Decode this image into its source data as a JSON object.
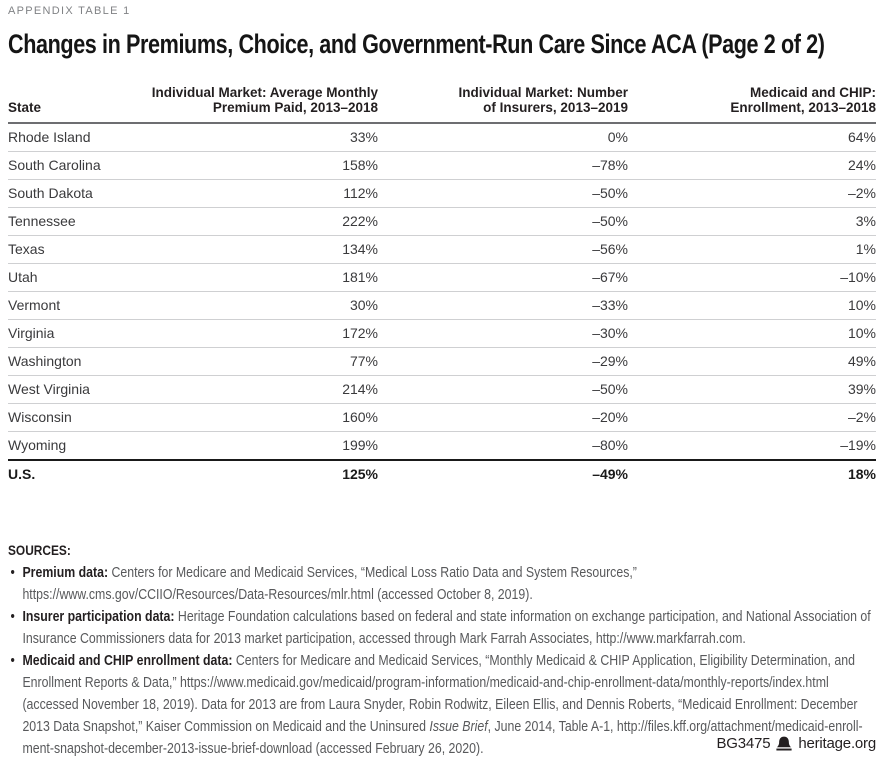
{
  "eyebrow": "APPENDIX TABLE 1",
  "title": "Changes in Premiums, Choice, and Government-Run Care Since ACA (Page 2 of 2)",
  "table": {
    "columns": [
      {
        "label": "State"
      },
      {
        "label": "Individual Market: Average Monthly\nPremium Paid, 2013–2018"
      },
      {
        "label": "Individual Market: Number\nof Insurers, 2013–2019"
      },
      {
        "label": "Medicaid and CHIP:\nEnrollment, 2013–2018"
      }
    ],
    "rows": [
      {
        "state": "Rhode Island",
        "premium": "33%",
        "insurers": "0%",
        "medicaid": "64%"
      },
      {
        "state": "South Carolina",
        "premium": "158%",
        "insurers": "–78%",
        "medicaid": "24%"
      },
      {
        "state": "South Dakota",
        "premium": "112%",
        "insurers": "–50%",
        "medicaid": "–2%"
      },
      {
        "state": "Tennessee",
        "premium": "222%",
        "insurers": "–50%",
        "medicaid": "3%"
      },
      {
        "state": "Texas",
        "premium": "134%",
        "insurers": "–56%",
        "medicaid": "1%"
      },
      {
        "state": "Utah",
        "premium": "181%",
        "insurers": "–67%",
        "medicaid": "–10%"
      },
      {
        "state": "Vermont",
        "premium": "30%",
        "insurers": "–33%",
        "medicaid": "10%"
      },
      {
        "state": "Virginia",
        "premium": "172%",
        "insurers": "–30%",
        "medicaid": "10%"
      },
      {
        "state": "Washington",
        "premium": "77%",
        "insurers": "–29%",
        "medicaid": "49%"
      },
      {
        "state": "West Virginia",
        "premium": "214%",
        "insurers": "–50%",
        "medicaid": "39%"
      },
      {
        "state": "Wisconsin",
        "premium": "160%",
        "insurers": "–20%",
        "medicaid": "–2%"
      },
      {
        "state": "Wyoming",
        "premium": "199%",
        "insurers": "–80%",
        "medicaid": "–19%"
      },
      {
        "state": "U.S.",
        "premium": "125%",
        "insurers": "–49%",
        "medicaid": "18%",
        "total": true
      }
    ]
  },
  "sources": {
    "heading": "SOURCES:",
    "items": [
      {
        "segments": [
          {
            "text": "Premium data: ",
            "bold": true
          },
          {
            "text": "Centers for Medicare and Medicaid Services, “Medical Loss Ratio Data and System Resources,” https://www.cms.gov/CCIIO/Resources/Data-Resources/mlr.html (accessed October 8, 2019)."
          }
        ]
      },
      {
        "segments": [
          {
            "text": "Insurer participation data: ",
            "bold": true
          },
          {
            "text": "Heritage Foundation calculations based on federal and state information on exchange participation, and National Association of Insurance Commissioners data for 2013 market participation, accessed through Mark Farrah Associates, http://www.markfarrah.com."
          }
        ]
      },
      {
        "segments": [
          {
            "text": "Medicaid and CHIP enrollment data: ",
            "bold": true
          },
          {
            "text": "Centers for Medicare and Medicaid Services, “Monthly Medicaid & CHIP Application, Eligibility Determination, and Enrollment Reports & Data,” https://www.medicaid.gov/medicaid/program-information/medicaid-and-chip-enrollment-data/monthly-reports/index.html (accessed November 18, 2019). Data for 2013 are from Laura Snyder, Robin Rodwitz, Eileen Ellis, and Dennis Roberts, “Medicaid Enrollment: December 2013 Data Snapshot,” Kaiser Commission on Medicaid and the Uninsured "
          },
          {
            "text": "Issue Brief",
            "italic": true
          },
          {
            "text": ", June 2014, Table A-1, http://files.kff.org/attachment/medicaid-enroll-ment-snapshot-december-2013-issue-brief-download (accessed February 26, 2020)."
          }
        ]
      }
    ]
  },
  "footer": {
    "doc_id": "BG3475",
    "site": "heritage.org",
    "logo": "liberty-bell-icon",
    "text_color": "#231f20"
  }
}
